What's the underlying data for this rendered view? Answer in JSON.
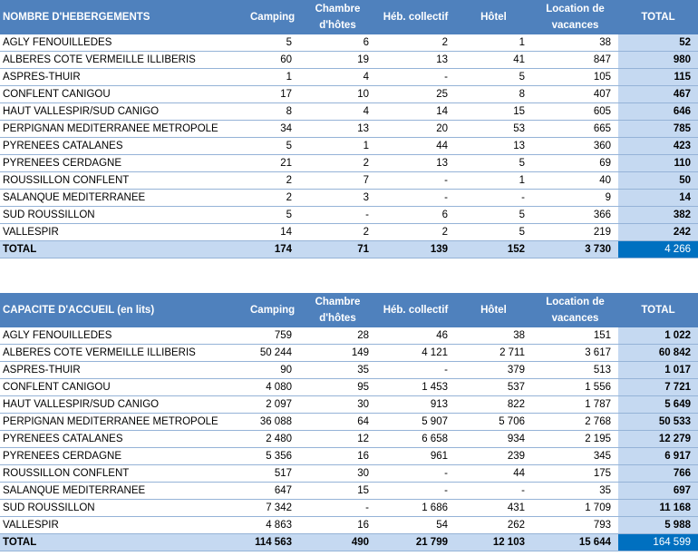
{
  "columns": [
    "Camping",
    "Chambre d'hôtes",
    "Héb. collectif",
    "Hôtel",
    "Location de vacances",
    "TOTAL"
  ],
  "tables": [
    {
      "title": "NOMBRE D'HEBERGEMENTS",
      "rows": [
        [
          "AGLY FENOUILLEDES",
          "5",
          "6",
          "2",
          "1",
          "38",
          "52"
        ],
        [
          "ALBERES COTE VERMEILLE ILLIBERIS",
          "60",
          "19",
          "13",
          "41",
          "847",
          "980"
        ],
        [
          "ASPRES-THUIR",
          "1",
          "4",
          "-",
          "5",
          "105",
          "115"
        ],
        [
          "CONFLENT CANIGOU",
          "17",
          "10",
          "25",
          "8",
          "407",
          "467"
        ],
        [
          "HAUT VALLESPIR/SUD CANIGO",
          "8",
          "4",
          "14",
          "15",
          "605",
          "646"
        ],
        [
          "PERPIGNAN MEDITERRANEE METROPOLE",
          "34",
          "13",
          "20",
          "53",
          "665",
          "785"
        ],
        [
          "PYRENEES CATALANES",
          "5",
          "1",
          "44",
          "13",
          "360",
          "423"
        ],
        [
          "PYRENEES CERDAGNE",
          "21",
          "2",
          "13",
          "5",
          "69",
          "110"
        ],
        [
          "ROUSSILLON CONFLENT",
          "2",
          "7",
          "-",
          "1",
          "40",
          "50"
        ],
        [
          "SALANQUE MEDITERRANEE",
          "2",
          "3",
          "-",
          "-",
          "9",
          "14"
        ],
        [
          "SUD ROUSSILLON",
          "5",
          "-",
          "6",
          "5",
          "366",
          "382"
        ],
        [
          "VALLESPIR",
          "14",
          "2",
          "2",
          "5",
          "219",
          "242"
        ]
      ],
      "total": [
        "TOTAL",
        "174",
        "71",
        "139",
        "152",
        "3 730",
        "4 266"
      ]
    },
    {
      "title": "CAPACITE D'ACCUEIL (en lits)",
      "rows": [
        [
          "AGLY FENOUILLEDES",
          "759",
          "28",
          "46",
          "38",
          "151",
          "1 022"
        ],
        [
          "ALBERES COTE VERMEILLE ILLIBERIS",
          "50 244",
          "149",
          "4 121",
          "2 711",
          "3 617",
          "60 842"
        ],
        [
          "ASPRES-THUIR",
          "90",
          "35",
          "-",
          "379",
          "513",
          "1 017"
        ],
        [
          "CONFLENT CANIGOU",
          "4 080",
          "95",
          "1 453",
          "537",
          "1 556",
          "7 721"
        ],
        [
          "HAUT VALLESPIR/SUD CANIGO",
          "2 097",
          "30",
          "913",
          "822",
          "1 787",
          "5 649"
        ],
        [
          "PERPIGNAN MEDITERRANEE METROPOLE",
          "36 088",
          "64",
          "5 907",
          "5 706",
          "2 768",
          "50 533"
        ],
        [
          "PYRENEES CATALANES",
          "2 480",
          "12",
          "6 658",
          "934",
          "2 195",
          "12 279"
        ],
        [
          "PYRENEES CERDAGNE",
          "5 356",
          "16",
          "961",
          "239",
          "345",
          "6 917"
        ],
        [
          "ROUSSILLON CONFLENT",
          "517",
          "30",
          "-",
          "44",
          "175",
          "766"
        ],
        [
          "SALANQUE MEDITERRANEE",
          "647",
          "15",
          "-",
          "-",
          "35",
          "697"
        ],
        [
          "SUD ROUSSILLON",
          "7 342",
          "-",
          "1 686",
          "431",
          "1 709",
          "11 168"
        ],
        [
          "VALLESPIR",
          "4 863",
          "16",
          "54",
          "262",
          "793",
          "5 988"
        ]
      ],
      "total": [
        "TOTAL",
        "114 563",
        "490",
        "21 799",
        "12 103",
        "15 644",
        "164 599"
      ]
    }
  ]
}
